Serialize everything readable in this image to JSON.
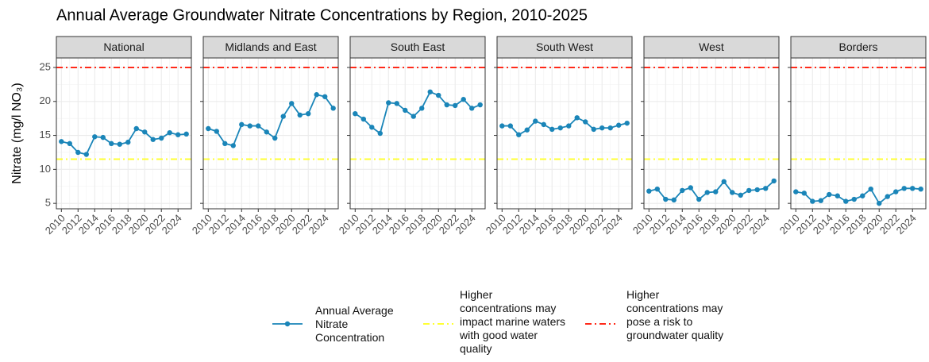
{
  "title": "Annual Average Groundwater Nitrate Concentrations by Region, 2010-2025",
  "y_label": "Nitrate (mg/l NO₃)",
  "reference_lines": [
    {
      "name": "Higher concentrations may impact marine waters with good water quality",
      "value": 11.5,
      "color": "#ffff33",
      "style": "dashdot"
    },
    {
      "name": "Higher concentrations may pose a risk to groundwater quality",
      "value": 25,
      "color": "#ff2a1a",
      "style": "dashdot"
    }
  ],
  "chart_data": [
    {
      "type": "line",
      "title": "National",
      "x": [
        2010,
        2011,
        2012,
        2013,
        2014,
        2015,
        2016,
        2017,
        2018,
        2019,
        2020,
        2021,
        2022,
        2023,
        2024,
        2025
      ],
      "series": [
        {
          "name": "Annual Average Nitrate Concentration",
          "color": "#1a85b8",
          "values": [
            14.1,
            13.8,
            12.5,
            12.2,
            14.8,
            14.7,
            13.8,
            13.7,
            14.0,
            16.0,
            15.5,
            14.4,
            14.6,
            15.4,
            15.1,
            15.2
          ]
        }
      ],
      "xlim": [
        2009.4,
        2025.6
      ],
      "xticks": [
        2010,
        2012,
        2014,
        2016,
        2018,
        2020,
        2022,
        2024
      ],
      "ylim": [
        4.2,
        26.4
      ],
      "yticks": [
        5,
        10,
        15,
        20,
        25
      ],
      "grid": true
    },
    {
      "type": "line",
      "title": "Midlands and East",
      "x": [
        2010,
        2011,
        2012,
        2013,
        2014,
        2015,
        2016,
        2017,
        2018,
        2019,
        2020,
        2021,
        2022,
        2023,
        2024,
        2025
      ],
      "series": [
        {
          "color": "#1a85b8",
          "values": [
            16.0,
            15.6,
            13.8,
            13.5,
            16.6,
            16.4,
            16.4,
            15.5,
            14.6,
            17.8,
            19.7,
            18.0,
            18.2,
            21.0,
            20.7,
            19.0
          ]
        }
      ],
      "xlim": [
        2009.4,
        2025.6
      ],
      "xticks": [
        2010,
        2012,
        2014,
        2016,
        2018,
        2020,
        2022,
        2024
      ],
      "ylim": [
        4.2,
        26.4
      ],
      "yticks": [
        5,
        10,
        15,
        20,
        25
      ],
      "grid": true
    },
    {
      "type": "line",
      "title": "South East",
      "x": [
        2010,
        2011,
        2012,
        2013,
        2014,
        2015,
        2016,
        2017,
        2018,
        2019,
        2020,
        2021,
        2022,
        2023,
        2024,
        2025
      ],
      "series": [
        {
          "color": "#1a85b8",
          "values": [
            18.2,
            17.4,
            16.2,
            15.3,
            19.8,
            19.7,
            18.7,
            17.8,
            19.0,
            21.4,
            20.9,
            19.5,
            19.4,
            20.3,
            19.0,
            19.5
          ]
        }
      ],
      "xlim": [
        2009.4,
        2025.6
      ],
      "xticks": [
        2010,
        2012,
        2014,
        2016,
        2018,
        2020,
        2022,
        2024
      ],
      "ylim": [
        4.2,
        26.4
      ],
      "yticks": [
        5,
        10,
        15,
        20,
        25
      ],
      "grid": true
    },
    {
      "type": "line",
      "title": "South West",
      "x": [
        2010,
        2011,
        2012,
        2013,
        2014,
        2015,
        2016,
        2017,
        2018,
        2019,
        2020,
        2021,
        2022,
        2023,
        2024,
        2025
      ],
      "series": [
        {
          "color": "#1a85b8",
          "values": [
            16.4,
            16.4,
            15.1,
            15.8,
            17.1,
            16.6,
            15.9,
            16.1,
            16.4,
            17.6,
            17.0,
            15.9,
            16.1,
            16.1,
            16.5,
            16.8
          ]
        }
      ],
      "xlim": [
        2009.4,
        2025.6
      ],
      "xticks": [
        2010,
        2012,
        2014,
        2016,
        2018,
        2020,
        2022,
        2024
      ],
      "ylim": [
        4.2,
        26.4
      ],
      "yticks": [
        5,
        10,
        15,
        20,
        25
      ],
      "grid": true
    },
    {
      "type": "line",
      "title": "West",
      "x": [
        2010,
        2011,
        2012,
        2013,
        2014,
        2015,
        2016,
        2017,
        2018,
        2019,
        2020,
        2021,
        2022,
        2023,
        2024,
        2025
      ],
      "series": [
        {
          "color": "#1a85b8",
          "values": [
            6.8,
            7.1,
            5.6,
            5.5,
            6.9,
            7.3,
            5.6,
            6.6,
            6.7,
            8.2,
            6.6,
            6.2,
            6.9,
            7.0,
            7.2,
            8.3
          ]
        }
      ],
      "xlim": [
        2009.4,
        2025.6
      ],
      "xticks": [
        2010,
        2012,
        2014,
        2016,
        2018,
        2020,
        2022,
        2024
      ],
      "ylim": [
        4.2,
        26.4
      ],
      "yticks": [
        5,
        10,
        15,
        20,
        25
      ],
      "grid": true
    },
    {
      "type": "line",
      "title": "Borders",
      "x": [
        2010,
        2011,
        2012,
        2013,
        2014,
        2015,
        2016,
        2017,
        2018,
        2019,
        2020,
        2021,
        2022,
        2023,
        2024,
        2025
      ],
      "series": [
        {
          "color": "#1a85b8",
          "values": [
            6.7,
            6.5,
            5.3,
            5.4,
            6.3,
            6.1,
            5.3,
            5.6,
            6.1,
            7.1,
            5.0,
            6.0,
            6.7,
            7.2,
            7.2,
            7.1
          ]
        }
      ],
      "xlim": [
        2009.4,
        2025.6
      ],
      "xticks": [
        2010,
        2012,
        2014,
        2016,
        2018,
        2020,
        2022,
        2024
      ],
      "ylim": [
        4.2,
        26.4
      ],
      "yticks": [
        5,
        10,
        15,
        20,
        25
      ],
      "grid": true
    }
  ]
}
